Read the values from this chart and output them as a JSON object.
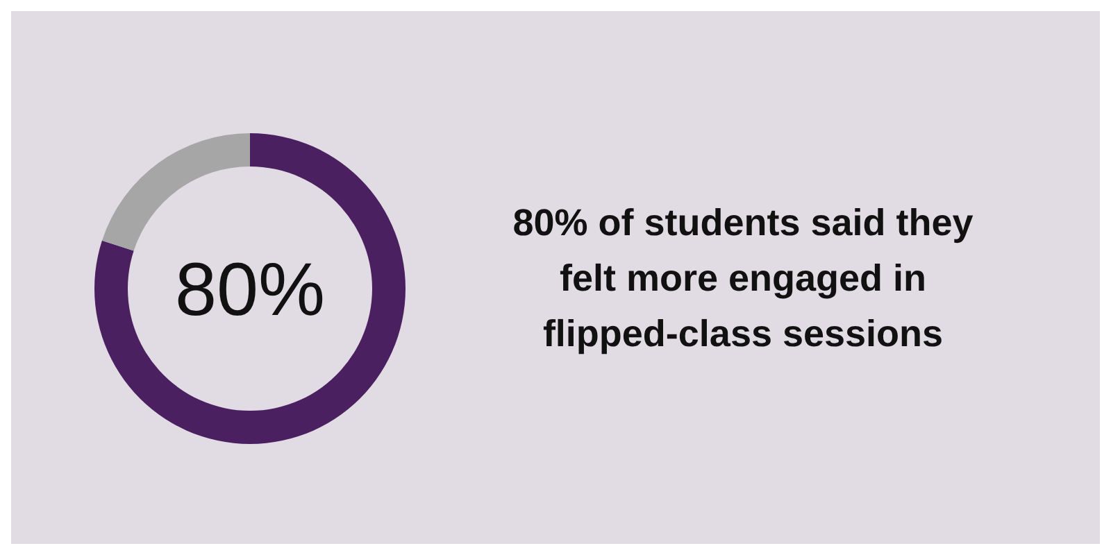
{
  "chart_data": {
    "type": "donut",
    "title": "80% of students said they felt more engaged in flipped-class sessions",
    "categories": [
      null,
      null
    ],
    "values": [
      80,
      20
    ],
    "colors": [
      "#4a2060",
      "#a6a6a6"
    ],
    "value_labels": [
      "80%",
      null
    ]
  }
}
